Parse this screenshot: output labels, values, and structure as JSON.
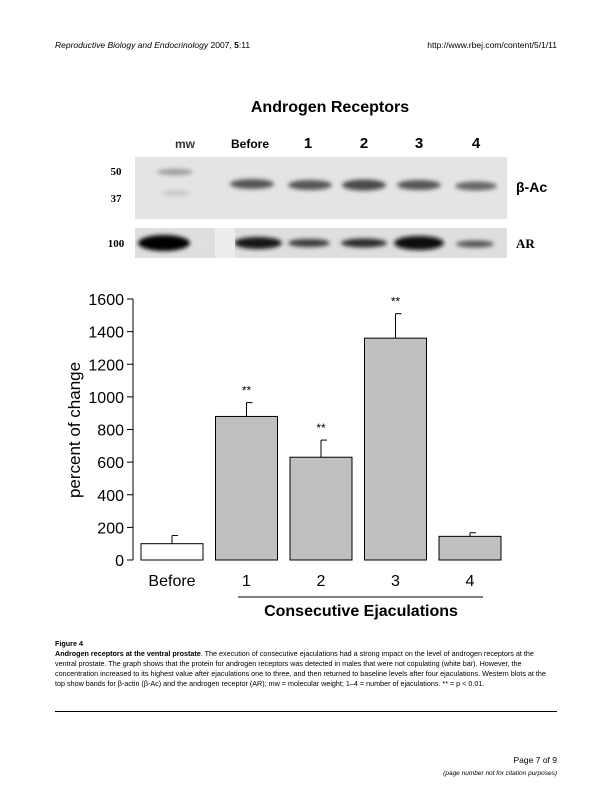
{
  "header": {
    "journal": "Reproductive Biology and Endocrinology",
    "year": "2007,",
    "volume": "5",
    "article": ":11",
    "url": "http://www.rbej.com/content/5/1/11"
  },
  "blot": {
    "title": "Androgen Receptors",
    "lanes": [
      "mw",
      "Before",
      "1",
      "2",
      "3",
      "4"
    ],
    "mw_markers": [
      "50",
      "37",
      "100"
    ],
    "band_labels": [
      "β-Ac",
      "AR"
    ]
  },
  "chart_data": {
    "type": "bar",
    "categories": [
      "Before",
      "1",
      "2",
      "3",
      "4"
    ],
    "values": [
      100,
      880,
      630,
      1360,
      145
    ],
    "errors": [
      50,
      85,
      105,
      150,
      22
    ],
    "significance": [
      "",
      "**",
      "**",
      "**",
      ""
    ],
    "bar_colors": [
      "#ffffff",
      "#c0c0c0",
      "#c0c0c0",
      "#c0c0c0",
      "#c0c0c0"
    ],
    "ylabel": "percent of change",
    "xlabel": "Consecutive Ejaculations",
    "ylim": [
      0,
      1600
    ],
    "yticks": [
      "0",
      "200",
      "400",
      "600",
      "800",
      "1000",
      "1200",
      "1400",
      "1600"
    ],
    "grid": false
  },
  "caption": {
    "figure_label": "Figure 4",
    "title": "Androgen receptors at the ventral prostate",
    "text": ". The execution of consecutive ejaculations had a strong impact on the level of androgen receptors at the ventral prostate. The graph shows that the protein for androgen receptors was detected in males that were not copulating (white bar). However, the concentration increased to its highest value after ejaculations one to three, and then returned to baseline levels after four ejaculations. Western blots at the top show bands for β-actin (β-Ac) and the androgen receptor (AR); mw = molecular weight; 1–4 = number of ejaculations. ** = p < 0.01."
  },
  "footer": {
    "page": "Page 7 of 9",
    "note": "(page number not for citation purposes)"
  }
}
